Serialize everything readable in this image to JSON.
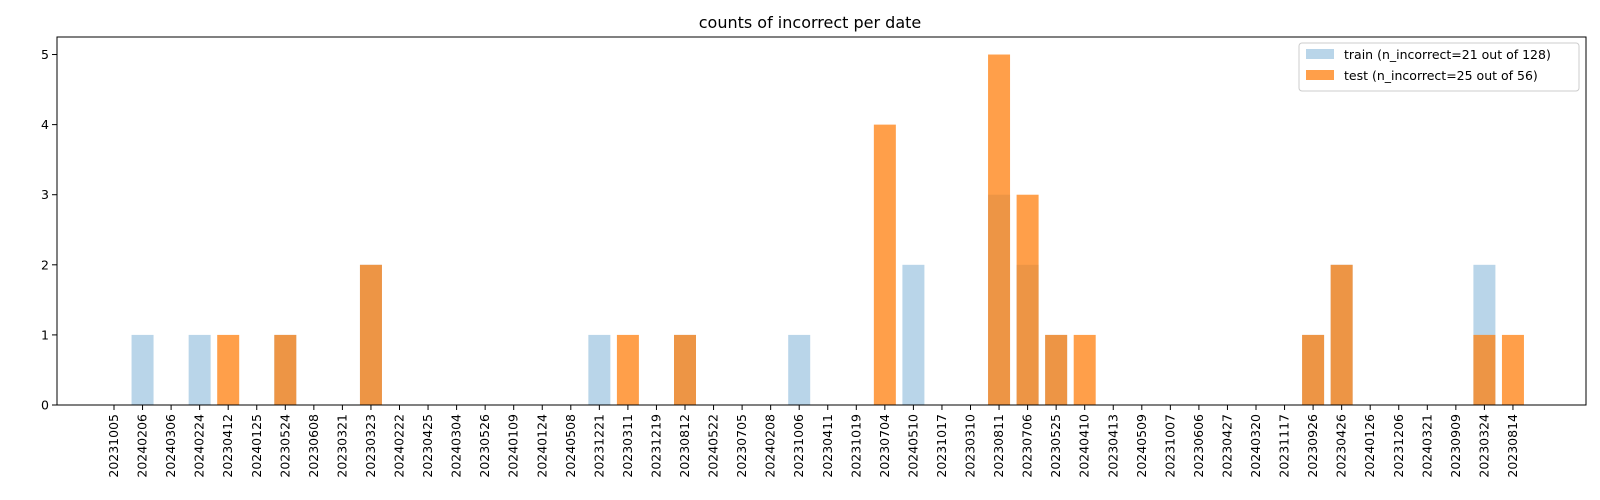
{
  "chart_data": {
    "type": "bar",
    "title": "counts of incorrect per date",
    "xlabel": "",
    "ylabel": "",
    "ylim": [
      0,
      5.25
    ],
    "yticks": [
      0,
      1,
      2,
      3,
      4,
      5
    ],
    "grid": false,
    "legend_position": "top-right",
    "categories": [
      "20231005",
      "20240206",
      "20240306",
      "20240224",
      "20230412",
      "20240125",
      "20230524",
      "20230608",
      "20230321",
      "20230323",
      "20240222",
      "20230425",
      "20240304",
      "20230526",
      "20240109",
      "20240124",
      "20240508",
      "20231221",
      "20230311",
      "20231219",
      "20230812",
      "20240522",
      "20230705",
      "20240208",
      "20231006",
      "20230411",
      "20231019",
      "20230704",
      "20240510",
      "20231017",
      "20230310",
      "20230811",
      "20230706",
      "20230525",
      "20240410",
      "20230413",
      "20240509",
      "20231007",
      "20230606",
      "20230427",
      "20240320",
      "20231117",
      "20230926",
      "20230426",
      "20240126",
      "20231206",
      "20240321",
      "20230909",
      "20230324",
      "20230814"
    ],
    "series": [
      {
        "name": "train (n_incorrect=21 out of 128)",
        "color": "#b9d5e9",
        "values": [
          0,
          1,
          0,
          1,
          0,
          0,
          1,
          0,
          0,
          2,
          0,
          0,
          0,
          0,
          0,
          0,
          0,
          1,
          0,
          0,
          1,
          0,
          0,
          0,
          1,
          0,
          0,
          0,
          2,
          0,
          0,
          3,
          2,
          1,
          0,
          0,
          0,
          0,
          0,
          0,
          0,
          0,
          1,
          2,
          0,
          0,
          0,
          0,
          2,
          0
        ]
      },
      {
        "name": "test (n_incorrect=25 out of 56)",
        "color": "#ff7f0e",
        "values": [
          0,
          0,
          0,
          0,
          1,
          0,
          1,
          0,
          0,
          2,
          0,
          0,
          0,
          0,
          0,
          0,
          0,
          0,
          1,
          0,
          1,
          0,
          0,
          0,
          0,
          0,
          0,
          4,
          0,
          0,
          0,
          5,
          3,
          1,
          1,
          0,
          0,
          0,
          0,
          0,
          0,
          0,
          1,
          2,
          0,
          0,
          0,
          0,
          1,
          1
        ]
      }
    ]
  }
}
